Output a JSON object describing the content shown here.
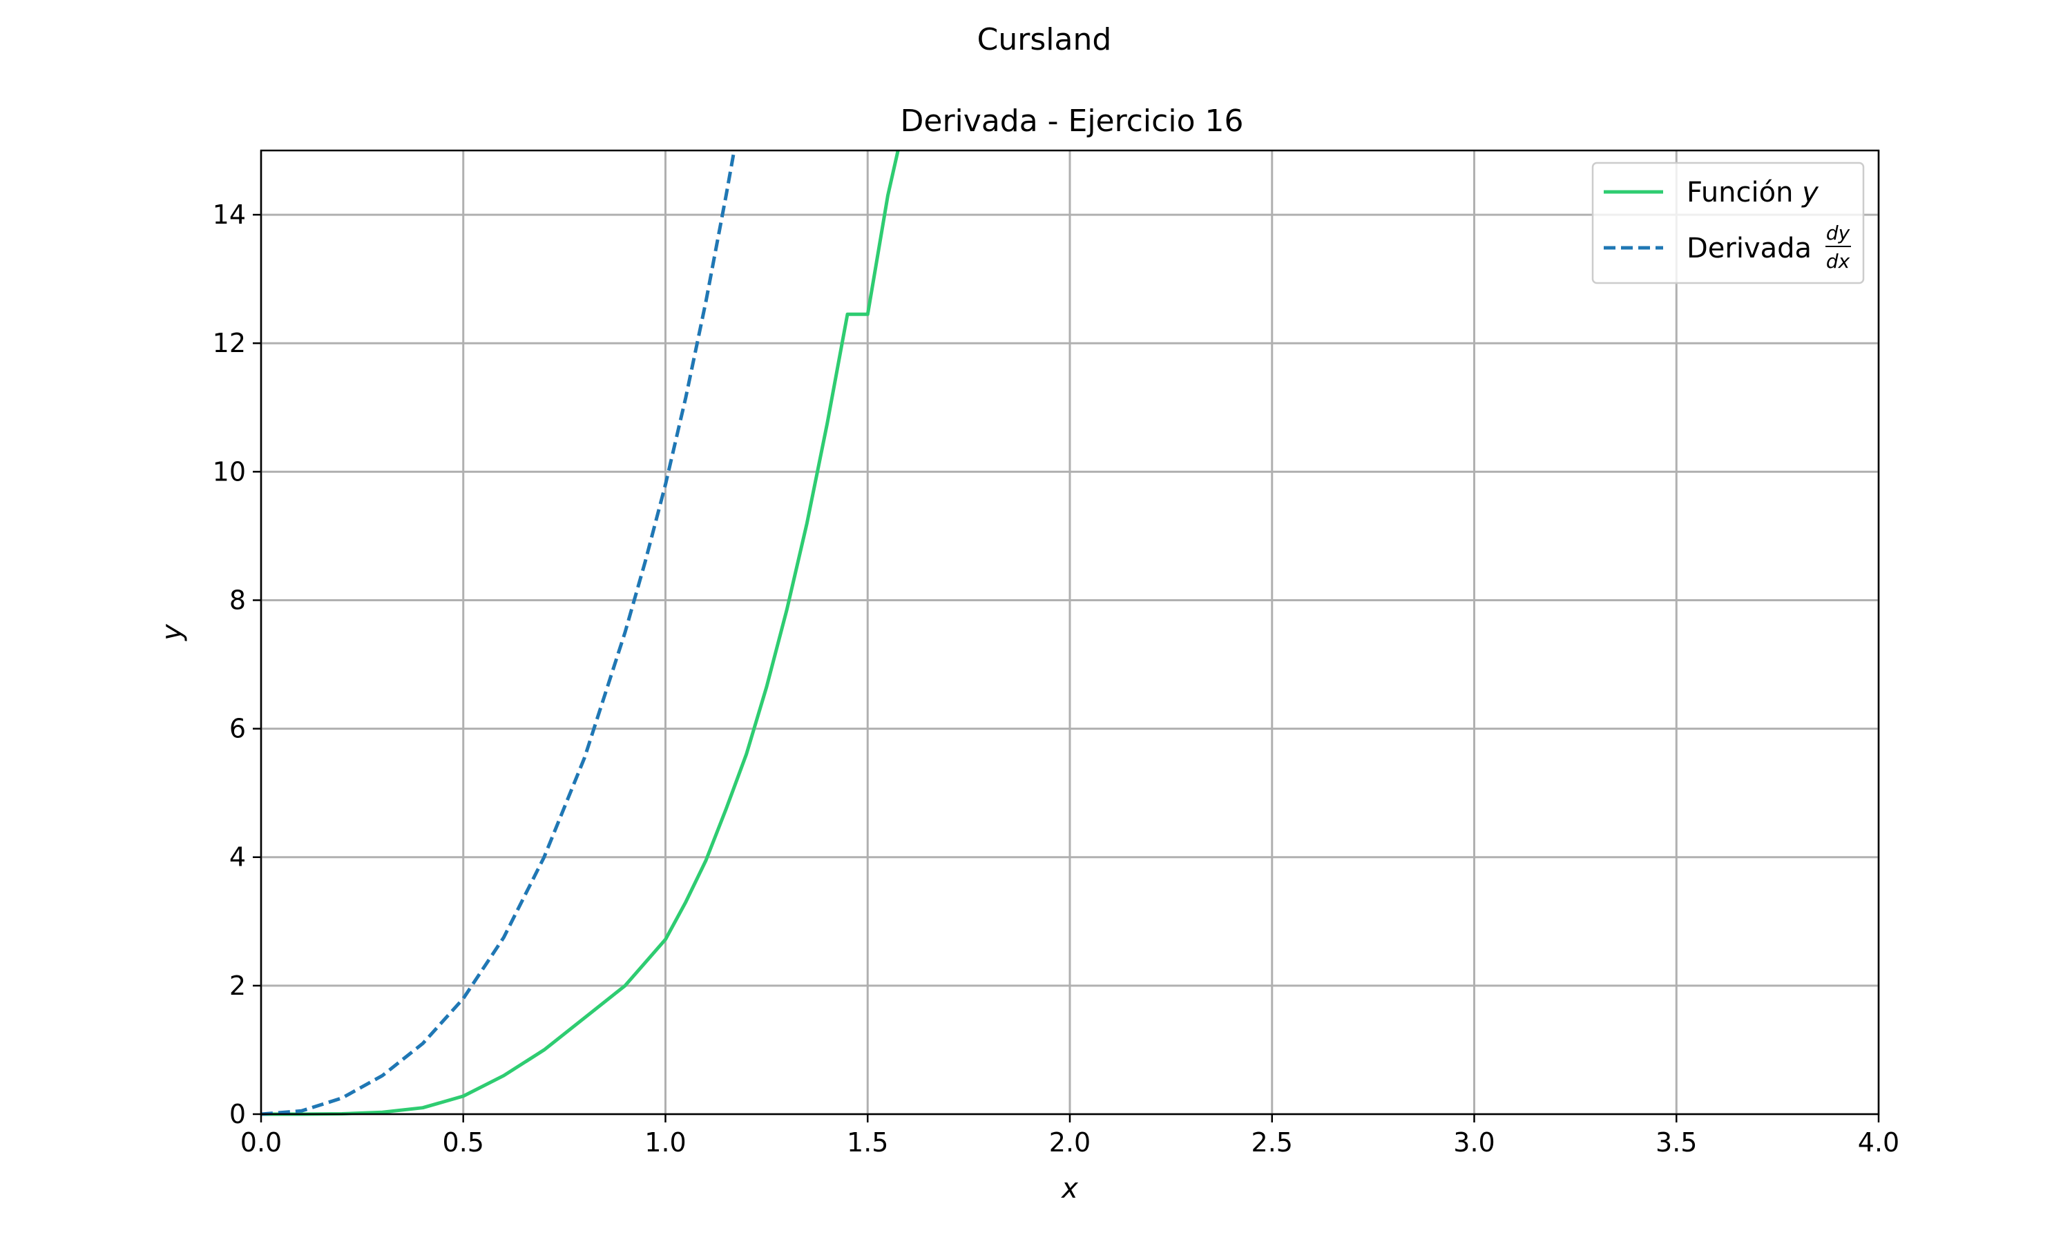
{
  "figure": {
    "suptitle": "Cursland"
  },
  "chart_data": {
    "type": "line",
    "title": "Derivada - Ejercicio 16",
    "xlabel": "x",
    "ylabel": "y",
    "xlim": [
      0,
      4
    ],
    "ylim": [
      0,
      15
    ],
    "grid": true,
    "legend_position": "top-right",
    "x_ticks": [
      0,
      0.5,
      1,
      1.5,
      2,
      2.5,
      3,
      3.5,
      4
    ],
    "x_tick_labels": [
      "0.0",
      "0.5",
      "1.0",
      "1.5",
      "2.0",
      "2.5",
      "3.0",
      "3.5",
      "4.0"
    ],
    "y_ticks": [
      0,
      2,
      4,
      6,
      8,
      10,
      12,
      14
    ],
    "y_tick_labels": [
      "0",
      "2",
      "4",
      "6",
      "8",
      "10",
      "12",
      "14"
    ],
    "series": [
      {
        "name": "Función y",
        "name_prefix": "Función ",
        "name_symbol": "y",
        "color": "#2ecc71",
        "style": "solid",
        "x": [
          0,
          0.1,
          0.2,
          0.3,
          0.4,
          0.5,
          0.6,
          0.7,
          0.8,
          0.9,
          1.0,
          1.05,
          1.1,
          1.15,
          1.2,
          1.25,
          1.3,
          1.35,
          1.4,
          1.45,
          1.5,
          1.55,
          1.575
        ],
        "y": [
          0,
          0.0003,
          0.005,
          0.03,
          0.1,
          0.28,
          0.6,
          1.0,
          1.5,
          2.0,
          2.72,
          3.3,
          3.95,
          4.75,
          5.6,
          6.65,
          7.85,
          9.2,
          10.75,
          12.45,
          12.45,
          14.3,
          15.0
        ]
      },
      {
        "name": "Derivada dy/dx",
        "name_prefix": "Derivada ",
        "name_frac_num": "dy",
        "name_frac_den": "dx",
        "color": "#1f77b4",
        "style": "dashed",
        "x": [
          0,
          0.1,
          0.2,
          0.3,
          0.4,
          0.5,
          0.6,
          0.7,
          0.8,
          0.9,
          0.95,
          1.0,
          1.05,
          1.1,
          1.15,
          1.17
        ],
        "y": [
          0,
          0.05,
          0.25,
          0.6,
          1.1,
          1.8,
          2.75,
          4.0,
          5.55,
          7.5,
          8.6,
          9.8,
          11.15,
          12.65,
          14.3,
          15.0
        ]
      }
    ]
  }
}
